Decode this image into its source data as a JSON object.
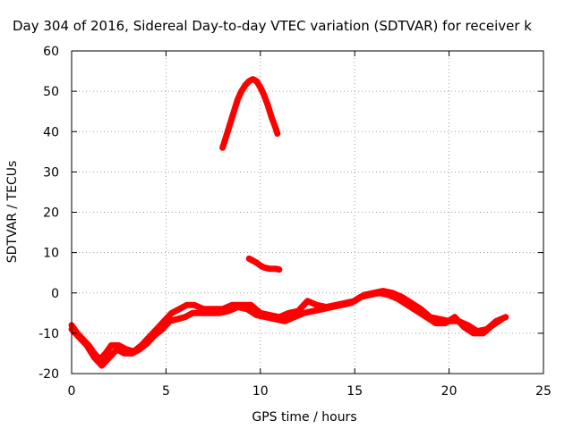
{
  "chart_data": {
    "type": "scatter",
    "title": "Day 304 of 2016, Sidereal Day-to-day VTEC variation (SDTVAR) for receiver k",
    "xlabel": "GPS time / hours",
    "ylabel": "SDTVAR / TECUs",
    "xlim": [
      0,
      25
    ],
    "ylim": [
      -20,
      60
    ],
    "xticks": [
      0,
      5,
      10,
      15,
      20,
      25
    ],
    "yticks": [
      -20,
      -10,
      0,
      10,
      20,
      30,
      40,
      50,
      60
    ],
    "grid": true,
    "series_color": "#ff0000",
    "series": [
      {
        "name": "baseline",
        "points": [
          [
            0,
            -8
          ],
          [
            0.3,
            -10
          ],
          [
            0.6,
            -11.5
          ],
          [
            0.9,
            -13
          ],
          [
            1.2,
            -15
          ],
          [
            1.5,
            -16.5
          ],
          [
            1.8,
            -15
          ],
          [
            2.1,
            -13
          ],
          [
            2.5,
            -13
          ],
          [
            2.9,
            -14
          ],
          [
            3.3,
            -14.5
          ],
          [
            3.7,
            -13
          ],
          [
            4.1,
            -11
          ],
          [
            4.5,
            -9
          ],
          [
            4.9,
            -7
          ],
          [
            5.3,
            -5
          ],
          [
            5.7,
            -4
          ],
          [
            6.1,
            -3
          ],
          [
            6.5,
            -3
          ],
          [
            7.0,
            -4
          ],
          [
            7.5,
            -4
          ],
          [
            8.0,
            -4
          ],
          [
            8.5,
            -3
          ],
          [
            9.0,
            -3
          ],
          [
            9.5,
            -3
          ],
          [
            10.0,
            -5
          ],
          [
            10.5,
            -5.5
          ],
          [
            11.0,
            -6
          ],
          [
            11.5,
            -5
          ],
          [
            12.0,
            -4.5
          ],
          [
            12.5,
            -2
          ],
          [
            13.0,
            -3
          ],
          [
            13.5,
            -3.5
          ],
          [
            14.0,
            -3
          ],
          [
            14.5,
            -2.5
          ],
          [
            15.0,
            -2
          ],
          [
            15.5,
            -0.5
          ],
          [
            16.0,
            0
          ],
          [
            16.5,
            0.5
          ],
          [
            17.0,
            0
          ],
          [
            17.5,
            -1
          ],
          [
            18.0,
            -2.5
          ],
          [
            18.5,
            -4
          ],
          [
            19.0,
            -6
          ],
          [
            19.5,
            -6.5
          ],
          [
            20.0,
            -7
          ],
          [
            20.5,
            -7
          ],
          [
            21.0,
            -8
          ],
          [
            21.5,
            -9.5
          ],
          [
            22.0,
            -9
          ],
          [
            22.5,
            -7
          ],
          [
            23.0,
            -6
          ]
        ]
      },
      {
        "name": "baseline-lower",
        "points": [
          [
            0,
            -9
          ],
          [
            0.4,
            -11
          ],
          [
            0.8,
            -13
          ],
          [
            1.2,
            -16
          ],
          [
            1.6,
            -18
          ],
          [
            2.0,
            -16
          ],
          [
            2.4,
            -14
          ],
          [
            2.8,
            -15
          ],
          [
            3.2,
            -15
          ],
          [
            3.6,
            -14
          ],
          [
            4.0,
            -12.5
          ],
          [
            4.4,
            -10.5
          ],
          [
            4.8,
            -9
          ],
          [
            5.2,
            -7
          ],
          [
            5.6,
            -6.5
          ],
          [
            6.0,
            -6
          ],
          [
            6.4,
            -5
          ],
          [
            6.8,
            -5
          ],
          [
            7.3,
            -5
          ],
          [
            7.8,
            -5
          ],
          [
            8.3,
            -4.5
          ],
          [
            8.8,
            -3.5
          ],
          [
            9.3,
            -4
          ],
          [
            9.8,
            -5.5
          ],
          [
            10.3,
            -6
          ],
          [
            10.8,
            -6.5
          ],
          [
            11.3,
            -7
          ],
          [
            11.8,
            -6
          ],
          [
            12.3,
            -5
          ],
          [
            12.8,
            -4.5
          ],
          [
            13.3,
            -4
          ],
          [
            13.8,
            -3.5
          ],
          [
            14.3,
            -3
          ],
          [
            14.8,
            -2.5
          ],
          [
            15.3,
            -1
          ],
          [
            15.8,
            -0.5
          ],
          [
            16.3,
            0
          ],
          [
            16.8,
            -0.5
          ],
          [
            17.3,
            -1.5
          ],
          [
            17.8,
            -3
          ],
          [
            18.3,
            -4.5
          ],
          [
            18.8,
            -6
          ],
          [
            19.3,
            -7.5
          ],
          [
            19.8,
            -7.5
          ],
          [
            20.3,
            -6
          ],
          [
            20.8,
            -8.5
          ],
          [
            21.3,
            -10
          ],
          [
            21.8,
            -10
          ],
          [
            22.3,
            -8
          ],
          [
            22.8,
            -6.5
          ]
        ]
      },
      {
        "name": "arc",
        "points": [
          [
            8.0,
            36
          ],
          [
            8.2,
            39
          ],
          [
            8.4,
            42
          ],
          [
            8.6,
            45
          ],
          [
            8.8,
            48
          ],
          [
            9.0,
            50
          ],
          [
            9.2,
            51.5
          ],
          [
            9.4,
            52.5
          ],
          [
            9.6,
            53
          ],
          [
            9.8,
            52.5
          ],
          [
            10.0,
            51
          ],
          [
            10.2,
            49
          ],
          [
            10.4,
            46.5
          ],
          [
            10.6,
            43.5
          ],
          [
            10.8,
            41
          ],
          [
            10.9,
            39.5
          ]
        ]
      },
      {
        "name": "segment",
        "points": [
          [
            9.4,
            8.5
          ],
          [
            9.6,
            8
          ],
          [
            9.8,
            7.5
          ],
          [
            10.0,
            6.8
          ],
          [
            10.2,
            6.3
          ],
          [
            10.5,
            6
          ],
          [
            10.8,
            6
          ],
          [
            11.0,
            5.8
          ]
        ]
      }
    ]
  }
}
